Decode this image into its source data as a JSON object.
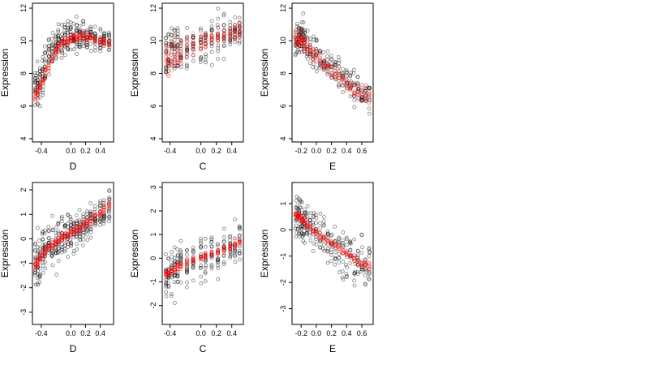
{
  "colors": {
    "observed": "#000000",
    "fitted": "#ff0000",
    "axis": "#000000"
  },
  "chart_data": [
    {
      "type": "scatter",
      "xlabel": "D",
      "ylabel": "Expression",
      "xlim": [
        -0.52,
        0.58
      ],
      "ylim": [
        3.8,
        12.3
      ],
      "xticks": [
        -0.4,
        0.0,
        0.2,
        0.4
      ],
      "xtick_labels": [
        "-0.4",
        "0.0",
        "0.2",
        "0.4"
      ],
      "yticks": [
        4,
        6,
        8,
        10,
        12
      ],
      "ytick_labels": [
        "4",
        "6",
        "8",
        "10",
        "12"
      ],
      "x_groups": [
        -0.48,
        -0.45,
        -0.42,
        -0.38,
        -0.35,
        -0.3,
        -0.25,
        -0.2,
        -0.17,
        -0.12,
        -0.08,
        -0.04,
        0.0,
        0.04,
        0.08,
        0.12,
        0.17,
        0.22,
        0.27,
        0.33,
        0.4,
        0.45,
        0.52
      ],
      "points_per_group": 14,
      "x_jitter": 0.006,
      "series": [
        {
          "y": [
            7.2,
            7.0,
            7.4,
            7.8,
            8.5,
            9.2,
            9.6,
            9.8,
            9.9,
            10.0,
            10.1,
            10.1,
            10.2,
            10.2,
            10.3,
            10.3,
            10.3,
            10.2,
            10.2,
            10.1,
            10.0,
            10.0,
            9.9
          ],
          "spread": [
            1.4,
            1.5,
            1.3,
            1.1,
            1.2,
            1.0,
            1.0,
            1.0,
            0.9,
            0.9,
            0.9,
            0.9,
            0.9,
            0.9,
            0.9,
            0.9,
            0.8,
            0.8,
            0.8,
            0.7,
            0.7,
            0.6,
            0.6
          ]
        },
        {
          "y": [
            6.6,
            6.9,
            7.1,
            7.5,
            8.0,
            8.5,
            9.0,
            9.4,
            9.6,
            9.8,
            9.9,
            10.0,
            10.1,
            10.2,
            10.2,
            10.3,
            10.3,
            10.2,
            10.2,
            10.1,
            10.0,
            9.9,
            9.8
          ],
          "spread": [
            0.5,
            0.5,
            0.4,
            0.4,
            0.4,
            0.4,
            0.3,
            0.3,
            0.3,
            0.3,
            0.3,
            0.3,
            0.3,
            0.3,
            0.3,
            0.3,
            0.3,
            0.3,
            0.3,
            0.3,
            0.3,
            0.3,
            0.3
          ]
        }
      ]
    },
    {
      "type": "scatter",
      "xlabel": "C",
      "ylabel": "Expression",
      "xlim": [
        -0.5,
        0.55
      ],
      "ylim": [
        3.8,
        12.3
      ],
      "xticks": [
        -0.4,
        0.0,
        0.2,
        0.4
      ],
      "xtick_labels": [
        "-0.4",
        "0.0",
        "0.2",
        "0.4"
      ],
      "yticks": [
        4,
        6,
        8,
        10,
        12
      ],
      "ytick_labels": [
        "4",
        "6",
        "8",
        "10",
        "12"
      ],
      "x_groups": [
        -0.45,
        -0.42,
        -0.38,
        -0.34,
        -0.3,
        -0.26,
        -0.18,
        -0.1,
        0.0,
        0.06,
        0.14,
        0.22,
        0.3,
        0.38,
        0.44,
        0.5
      ],
      "points_per_group": 14,
      "x_jitter": 0.004,
      "series": [
        {
          "y": [
            9.0,
            9.1,
            9.3,
            9.4,
            9.5,
            9.4,
            9.6,
            9.8,
            9.9,
            10.0,
            10.1,
            10.2,
            10.3,
            10.4,
            10.5,
            10.6
          ],
          "spread": [
            1.6,
            1.6,
            1.5,
            1.5,
            1.5,
            1.5,
            1.4,
            1.2,
            1.2,
            1.2,
            1.2,
            1.2,
            1.1,
            1.1,
            1.1,
            1.0
          ]
        },
        {
          "y": [
            8.8,
            8.9,
            9.1,
            9.2,
            9.3,
            9.4,
            9.6,
            9.8,
            9.9,
            10.0,
            10.1,
            10.2,
            10.3,
            10.4,
            10.5,
            10.6
          ],
          "spread": [
            1.0,
            1.0,
            1.0,
            1.0,
            0.9,
            0.9,
            0.8,
            0.7,
            0.6,
            0.5,
            0.5,
            0.5,
            0.5,
            0.5,
            0.5,
            0.5
          ]
        }
      ]
    },
    {
      "type": "scatter",
      "xlabel": "E",
      "ylabel": "Expression",
      "xlim": [
        -0.32,
        0.75
      ],
      "ylim": [
        3.8,
        12.3
      ],
      "xticks": [
        -0.2,
        0.0,
        0.2,
        0.4,
        0.6
      ],
      "xtick_labels": [
        "-0.2",
        "0.0",
        "0.2",
        "0.4",
        "0.6"
      ],
      "yticks": [
        4,
        6,
        8,
        10,
        12
      ],
      "ytick_labels": [
        "4",
        "6",
        "8",
        "10",
        "12"
      ],
      "x_groups": [
        -0.27,
        -0.25,
        -0.23,
        -0.21,
        -0.19,
        -0.17,
        -0.15,
        -0.12,
        -0.08,
        -0.04,
        0.0,
        0.05,
        0.1,
        0.15,
        0.2,
        0.25,
        0.3,
        0.35,
        0.4,
        0.45,
        0.5,
        0.55,
        0.6,
        0.65,
        0.7
      ],
      "points_per_group": 10,
      "x_jitter": 0.008,
      "series": [
        {
          "y": [
            10.0,
            10.1,
            10.2,
            10.3,
            10.2,
            10.1,
            10.0,
            9.8,
            9.6,
            9.4,
            9.2,
            9.0,
            8.8,
            8.6,
            8.4,
            8.2,
            8.0,
            7.8,
            7.6,
            7.4,
            7.2,
            7.0,
            6.8,
            6.7,
            6.6
          ],
          "spread": [
            1.0,
            1.0,
            1.1,
            1.2,
            1.2,
            1.1,
            1.0,
            1.0,
            1.0,
            1.0,
            1.0,
            1.0,
            1.0,
            1.0,
            1.0,
            1.0,
            1.0,
            1.0,
            1.0,
            1.0,
            1.0,
            1.0,
            1.0,
            1.0,
            1.0
          ]
        },
        {
          "y": [
            10.0,
            10.1,
            10.2,
            10.2,
            10.1,
            10.0,
            9.8,
            9.6,
            9.4,
            9.2,
            9.0,
            8.8,
            8.6,
            8.4,
            8.2,
            8.0,
            7.8,
            7.6,
            7.4,
            7.2,
            7.0,
            6.9,
            6.8,
            6.7,
            6.6
          ],
          "spread": [
            0.6,
            0.6,
            0.6,
            0.6,
            0.5,
            0.5,
            0.5,
            0.5,
            0.5,
            0.5,
            0.5,
            0.5,
            0.5,
            0.5,
            0.5,
            0.5,
            0.5,
            0.5,
            0.5,
            0.5,
            0.5,
            0.5,
            0.5,
            0.5,
            0.5
          ]
        }
      ]
    },
    {
      "type": "scatter",
      "xlabel": "D",
      "ylabel": "Expression",
      "xlim": [
        -0.52,
        0.58
      ],
      "ylim": [
        -3.5,
        2.3
      ],
      "xticks": [
        -0.4,
        0.0,
        0.2,
        0.4
      ],
      "xtick_labels": [
        "-0.4",
        "0.0",
        "0.2",
        "0.4"
      ],
      "yticks": [
        -3,
        -2,
        -1,
        0,
        1,
        2
      ],
      "ytick_labels": [
        "-3",
        "-2",
        "-1",
        "0",
        "1",
        "2"
      ],
      "x_groups": [
        -0.48,
        -0.45,
        -0.42,
        -0.38,
        -0.35,
        -0.3,
        -0.25,
        -0.2,
        -0.17,
        -0.12,
        -0.08,
        -0.04,
        0.0,
        0.04,
        0.08,
        0.12,
        0.17,
        0.22,
        0.27,
        0.33,
        0.4,
        0.45,
        0.52
      ],
      "points_per_group": 14,
      "x_jitter": 0.006,
      "series": [
        {
          "y": [
            -1.0,
            -0.9,
            -0.7,
            -0.5,
            -0.4,
            -0.3,
            -0.2,
            -0.1,
            0.0,
            0.0,
            0.1,
            0.1,
            0.2,
            0.3,
            0.3,
            0.4,
            0.5,
            0.6,
            0.7,
            0.9,
            1.0,
            1.1,
            1.3
          ],
          "spread": [
            1.2,
            1.2,
            1.1,
            1.1,
            1.0,
            1.0,
            0.9,
            0.9,
            0.9,
            0.8,
            0.8,
            0.8,
            0.8,
            0.8,
            0.8,
            0.7,
            0.7,
            0.7,
            0.7,
            0.6,
            0.6,
            0.5,
            0.5
          ]
        },
        {
          "y": [
            -1.1,
            -0.95,
            -0.8,
            -0.6,
            -0.5,
            -0.35,
            -0.25,
            -0.15,
            -0.05,
            0.05,
            0.1,
            0.15,
            0.25,
            0.3,
            0.4,
            0.45,
            0.55,
            0.65,
            0.75,
            0.9,
            1.05,
            1.2,
            1.4
          ],
          "spread": [
            0.2,
            0.2,
            0.2,
            0.2,
            0.2,
            0.2,
            0.2,
            0.2,
            0.2,
            0.2,
            0.2,
            0.2,
            0.2,
            0.2,
            0.2,
            0.2,
            0.2,
            0.2,
            0.2,
            0.2,
            0.2,
            0.2,
            0.2
          ]
        }
      ]
    },
    {
      "type": "scatter",
      "xlabel": "C",
      "ylabel": "Expression",
      "xlim": [
        -0.5,
        0.55
      ],
      "ylim": [
        -2.8,
        3.2
      ],
      "xticks": [
        -0.4,
        0.0,
        0.2,
        0.4
      ],
      "xtick_labels": [
        "-0.4",
        "0.0",
        "0.2",
        "0.4"
      ],
      "yticks": [
        -2,
        -1,
        0,
        1,
        2,
        3
      ],
      "ytick_labels": [
        "-2",
        "-1",
        "0",
        "1",
        "2",
        "3"
      ],
      "x_groups": [
        -0.45,
        -0.42,
        -0.38,
        -0.34,
        -0.3,
        -0.26,
        -0.18,
        -0.1,
        0.0,
        0.06,
        0.14,
        0.22,
        0.3,
        0.38,
        0.44,
        0.5
      ],
      "points_per_group": 14,
      "x_jitter": 0.004,
      "series": [
        {
          "y": [
            -0.7,
            -0.6,
            -0.5,
            -0.5,
            -0.4,
            -0.3,
            -0.2,
            -0.1,
            0.0,
            0.1,
            0.2,
            0.3,
            0.4,
            0.5,
            0.6,
            0.7
          ],
          "spread": [
            1.0,
            1.0,
            1.0,
            1.0,
            1.0,
            0.9,
            0.9,
            0.9,
            0.9,
            0.9,
            0.9,
            1.0,
            1.0,
            1.0,
            1.0,
            1.1
          ]
        },
        {
          "y": [
            -0.7,
            -0.65,
            -0.55,
            -0.5,
            -0.4,
            -0.3,
            -0.2,
            -0.1,
            0.0,
            0.1,
            0.2,
            0.3,
            0.4,
            0.5,
            0.6,
            0.7
          ],
          "spread": [
            0.15,
            0.15,
            0.15,
            0.15,
            0.15,
            0.15,
            0.15,
            0.15,
            0.15,
            0.15,
            0.15,
            0.15,
            0.15,
            0.15,
            0.15,
            0.15
          ]
        }
      ]
    },
    {
      "type": "scatter",
      "xlabel": "E",
      "ylabel": "Expression",
      "xlim": [
        -0.32,
        0.75
      ],
      "ylim": [
        -3.6,
        1.8
      ],
      "xticks": [
        -0.2,
        0.0,
        0.2,
        0.4,
        0.6
      ],
      "xtick_labels": [
        "-0.2",
        "0.0",
        "0.2",
        "0.4",
        "0.6"
      ],
      "yticks": [
        -3,
        -2,
        -1,
        0,
        1
      ],
      "ytick_labels": [
        "-3",
        "-2",
        "-1",
        "0",
        "1"
      ],
      "x_groups": [
        -0.27,
        -0.25,
        -0.23,
        -0.21,
        -0.19,
        -0.17,
        -0.15,
        -0.12,
        -0.08,
        -0.04,
        0.0,
        0.05,
        0.1,
        0.15,
        0.2,
        0.25,
        0.3,
        0.35,
        0.4,
        0.45,
        0.5,
        0.55,
        0.6,
        0.65,
        0.7
      ],
      "points_per_group": 10,
      "x_jitter": 0.008,
      "series": [
        {
          "y": [
            0.5,
            0.5,
            0.45,
            0.4,
            0.35,
            0.3,
            0.25,
            0.2,
            0.1,
            0.0,
            -0.1,
            -0.2,
            -0.3,
            -0.4,
            -0.5,
            -0.6,
            -0.7,
            -0.8,
            -0.9,
            -1.0,
            -1.1,
            -1.2,
            -1.3,
            -1.35,
            -1.4
          ],
          "spread": [
            0.8,
            0.8,
            0.8,
            0.8,
            0.8,
            0.8,
            0.8,
            0.8,
            0.8,
            0.8,
            0.8,
            0.8,
            0.9,
            0.9,
            0.9,
            0.9,
            0.9,
            0.9,
            0.9,
            0.9,
            0.9,
            0.9,
            0.9,
            0.9,
            0.9
          ]
        },
        {
          "y": [
            0.6,
            0.55,
            0.5,
            0.45,
            0.4,
            0.35,
            0.3,
            0.2,
            0.1,
            0.0,
            -0.1,
            -0.2,
            -0.3,
            -0.4,
            -0.5,
            -0.6,
            -0.7,
            -0.8,
            -0.9,
            -1.0,
            -1.1,
            -1.2,
            -1.3,
            -1.35,
            -1.4
          ],
          "spread": [
            0.15,
            0.15,
            0.15,
            0.15,
            0.15,
            0.15,
            0.15,
            0.15,
            0.15,
            0.15,
            0.15,
            0.15,
            0.15,
            0.15,
            0.15,
            0.15,
            0.15,
            0.15,
            0.15,
            0.15,
            0.15,
            0.15,
            0.15,
            0.15,
            0.15
          ]
        }
      ]
    }
  ]
}
